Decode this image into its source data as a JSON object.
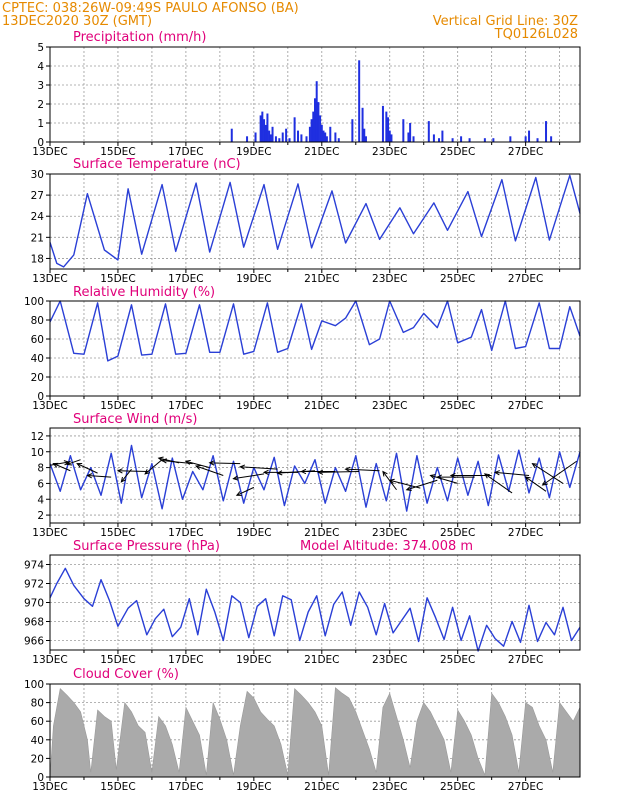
{
  "header": {
    "line1": "CPTEC:   038:26W-09:49S   PAULO AFONSO (BA)",
    "line2": "13DEC2020 30Z (GMT)",
    "right1": "Vertical Grid Line: 30Z",
    "right2": "TQ0126L028"
  },
  "colors": {
    "header": "#e68a00",
    "title": "#e0007a",
    "line": "#2a3fd6",
    "cloud": "#aaaaaa",
    "bar": "#1f2fe0"
  },
  "chart_data": [
    {
      "type": "bar",
      "title": "Precipitation (mm/h)",
      "ylim": [
        0,
        5
      ],
      "yticks": [
        "0",
        "1",
        "2",
        "3",
        "4",
        "5"
      ],
      "xticks": [
        "13DEC",
        "15DEC",
        "17DEC",
        "19DEC",
        "21DEC",
        "23DEC",
        "25DEC",
        "27DEC"
      ],
      "x": [
        5.35,
        5.8,
        6.05,
        6.2,
        6.25,
        6.3,
        6.35,
        6.4,
        6.45,
        6.5,
        6.55,
        6.65,
        6.75,
        6.85,
        6.95,
        7.05,
        7.2,
        7.3,
        7.4,
        7.55,
        7.65,
        7.7,
        7.75,
        7.8,
        7.85,
        7.9,
        7.95,
        8.0,
        8.05,
        8.1,
        8.15,
        8.25,
        8.4,
        8.5,
        8.9,
        9.1,
        9.2,
        9.25,
        9.3,
        9.8,
        9.9,
        9.95,
        10.0,
        10.05,
        10.4,
        10.55,
        10.6,
        10.7,
        11.15,
        11.3,
        11.45,
        11.55,
        11.85,
        12.1,
        12.35,
        12.8,
        13.05,
        13.55,
        14.0,
        14.1,
        14.35,
        14.6,
        14.75
      ],
      "values": [
        0.7,
        0.3,
        0.5,
        1.4,
        1.6,
        1.2,
        0.9,
        1.5,
        0.6,
        0.4,
        0.8,
        0.3,
        0.2,
        0.5,
        0.7,
        0.2,
        1.3,
        0.6,
        0.4,
        0.3,
        0.8,
        1.2,
        1.6,
        2.3,
        3.2,
        2.1,
        1.4,
        0.9,
        0.6,
        0.5,
        0.3,
        0.8,
        0.5,
        0.2,
        1.2,
        4.3,
        1.8,
        0.7,
        0.3,
        1.9,
        1.6,
        1.3,
        0.6,
        0.4,
        1.2,
        0.5,
        1.0,
        0.3,
        1.1,
        0.4,
        0.2,
        0.6,
        0.2,
        0.3,
        0.2,
        0.2,
        0.2,
        0.3,
        0.3,
        0.6,
        0.2,
        1.1,
        0.3
      ]
    },
    {
      "type": "line",
      "title": "Surface Temperature (nC)",
      "ylim": [
        16.5,
        30
      ],
      "yticks": [
        "18",
        "21",
        "24",
        "27",
        "30"
      ],
      "xticks": [
        "13DEC",
        "15DEC",
        "17DEC",
        "19DEC",
        "21DEC",
        "23DEC",
        "25DEC",
        "27DEC"
      ],
      "x": [
        0,
        0.2,
        0.4,
        0.7,
        1.1,
        1.6,
        2.0,
        2.3,
        2.7,
        3.3,
        3.7,
        4.3,
        4.7,
        5.3,
        5.7,
        6.3,
        6.7,
        7.3,
        7.7,
        8.3,
        8.7,
        9.3,
        9.7,
        10.3,
        10.7,
        11.3,
        11.7,
        12.3,
        12.7,
        13.3,
        13.7,
        14.3,
        14.7,
        15.3,
        15.6
      ],
      "values": [
        20.3,
        17.3,
        16.8,
        18.5,
        27.2,
        19.2,
        17.8,
        27.9,
        18.6,
        28.5,
        19.0,
        28.7,
        18.9,
        28.8,
        19.6,
        28.5,
        19.3,
        28.6,
        19.5,
        27.6,
        20.2,
        25.8,
        20.7,
        25.2,
        21.5,
        25.9,
        22.0,
        27.5,
        21.1,
        29.2,
        20.5,
        29.5,
        20.6,
        29.8,
        24.4
      ]
    },
    {
      "type": "line",
      "title": "Relative Humidity (%)",
      "ylim": [
        0,
        100
      ],
      "yticks": [
        "0",
        "20",
        "40",
        "60",
        "80",
        "100"
      ],
      "xticks": [
        "13DEC",
        "15DEC",
        "17DEC",
        "19DEC",
        "21DEC",
        "23DEC",
        "25DEC",
        "27DEC"
      ],
      "x": [
        0,
        0.3,
        0.7,
        1.0,
        1.4,
        1.7,
        2.0,
        2.4,
        2.7,
        3.0,
        3.4,
        3.7,
        4.0,
        4.4,
        4.7,
        5.0,
        5.4,
        5.7,
        6.0,
        6.4,
        6.7,
        7.0,
        7.4,
        7.7,
        8.0,
        8.4,
        8.7,
        9.0,
        9.4,
        9.7,
        10.0,
        10.4,
        10.7,
        11.0,
        11.4,
        11.7,
        12.0,
        12.4,
        12.7,
        13.0,
        13.4,
        13.7,
        14.0,
        14.4,
        14.7,
        15.0,
        15.3,
        15.6
      ],
      "values": [
        78,
        100,
        45,
        44,
        98,
        37,
        42,
        96,
        43,
        44,
        97,
        44,
        45,
        96,
        46,
        46,
        97,
        44,
        47,
        98,
        46,
        50,
        97,
        49,
        79,
        74,
        82,
        100,
        54,
        60,
        100,
        67,
        72,
        87,
        72,
        100,
        56,
        62,
        91,
        48,
        100,
        50,
        52,
        98,
        50,
        50,
        94,
        63
      ]
    },
    {
      "type": "line",
      "title": "Surface Wind (m/s)",
      "ylim": [
        1,
        13
      ],
      "yticks": [
        "2",
        "4",
        "6",
        "8",
        "10",
        "12"
      ],
      "xticks": [
        "13DEC",
        "15DEC",
        "17DEC",
        "19DEC",
        "21DEC",
        "23DEC",
        "25DEC",
        "27DEC"
      ],
      "x": [
        0,
        0.3,
        0.6,
        0.9,
        1.2,
        1.5,
        1.8,
        2.1,
        2.4,
        2.7,
        3.0,
        3.3,
        3.6,
        3.9,
        4.2,
        4.5,
        4.8,
        5.1,
        5.4,
        5.7,
        6.0,
        6.3,
        6.6,
        6.9,
        7.2,
        7.5,
        7.8,
        8.1,
        8.4,
        8.7,
        9.0,
        9.3,
        9.6,
        9.9,
        10.2,
        10.5,
        10.8,
        11.1,
        11.4,
        11.7,
        12.0,
        12.3,
        12.6,
        12.9,
        13.2,
        13.5,
        13.8,
        14.1,
        14.4,
        14.7,
        15.0,
        15.3,
        15.6
      ],
      "values": [
        8.5,
        5.0,
        9.5,
        5.2,
        8.0,
        4.5,
        9.8,
        3.5,
        10.8,
        4.2,
        8.5,
        2.8,
        9.2,
        4.0,
        7.5,
        5.2,
        9.5,
        3.8,
        8.8,
        3.5,
        8.0,
        5.2,
        9.3,
        3.2,
        8.2,
        6.0,
        9.0,
        3.5,
        8.0,
        5.0,
        9.5,
        3.0,
        8.5,
        3.8,
        9.8,
        2.5,
        9.5,
        3.5,
        8.0,
        3.8,
        9.2,
        4.5,
        8.8,
        3.2,
        9.6,
        5.0,
        10.2,
        4.8,
        9.2,
        4.2,
        10.0,
        5.5,
        10.0
      ],
      "arrows": [
        {
          "x": 0.0,
          "y": 8.3,
          "dx": 0.55,
          "dy": 0.4
        },
        {
          "x": 0.6,
          "y": 7.6,
          "dx": -0.5,
          "dy": 0.9
        },
        {
          "x": 0.9,
          "y": 9.0,
          "dx": -0.4,
          "dy": -0.6
        },
        {
          "x": 1.4,
          "y": 7.3,
          "dx": -0.6,
          "dy": 1.2
        },
        {
          "x": 1.8,
          "y": 6.8,
          "dx": -0.7,
          "dy": 0.2
        },
        {
          "x": 2.4,
          "y": 7.8,
          "dx": -0.3,
          "dy": -1.6
        },
        {
          "x": 2.9,
          "y": 7.5,
          "dx": -0.9,
          "dy": 0.1
        },
        {
          "x": 3.3,
          "y": 9.0,
          "dx": -0.5,
          "dy": -1.8
        },
        {
          "x": 3.8,
          "y": 8.6,
          "dx": -0.6,
          "dy": 0.6
        },
        {
          "x": 4.2,
          "y": 8.5,
          "dx": -0.9,
          "dy": 0.4
        },
        {
          "x": 4.7,
          "y": 8.0,
          "dx": -0.7,
          "dy": 0.8
        },
        {
          "x": 5.1,
          "y": 7.0,
          "dx": -0.8,
          "dy": 1.2
        },
        {
          "x": 5.6,
          "y": 8.5,
          "dx": -0.9,
          "dy": 0.1
        },
        {
          "x": 6.0,
          "y": 5.5,
          "dx": -0.5,
          "dy": -1.0
        },
        {
          "x": 6.3,
          "y": 7.2,
          "dx": -0.9,
          "dy": -0.6
        },
        {
          "x": 6.7,
          "y": 7.8,
          "dx": -1.1,
          "dy": 0.3
        },
        {
          "x": 7.3,
          "y": 7.4,
          "dx": -1.0,
          "dy": 0.0
        },
        {
          "x": 7.8,
          "y": 7.6,
          "dx": -1.1,
          "dy": -0.3
        },
        {
          "x": 8.4,
          "y": 7.5,
          "dx": -1.0,
          "dy": 0.0
        },
        {
          "x": 9.1,
          "y": 7.5,
          "dx": -1.2,
          "dy": -0.1
        },
        {
          "x": 9.7,
          "y": 7.6,
          "dx": -1.0,
          "dy": 0.2
        },
        {
          "x": 10.2,
          "y": 5.2,
          "dx": -0.4,
          "dy": 2.3
        },
        {
          "x": 10.9,
          "y": 5.4,
          "dx": -0.9,
          "dy": 1.0
        },
        {
          "x": 11.4,
          "y": 6.4,
          "dx": -0.9,
          "dy": -1.2
        },
        {
          "x": 12.0,
          "y": 6.0,
          "dx": -0.8,
          "dy": 1.0
        },
        {
          "x": 12.5,
          "y": 6.8,
          "dx": -1.1,
          "dy": 0.0
        },
        {
          "x": 13.0,
          "y": 7.0,
          "dx": -1.2,
          "dy": 0.0
        },
        {
          "x": 13.6,
          "y": 4.8,
          "dx": -0.8,
          "dy": 2.4
        },
        {
          "x": 14.1,
          "y": 7.0,
          "dx": -1.0,
          "dy": 0.4
        },
        {
          "x": 14.6,
          "y": 5.0,
          "dx": -0.6,
          "dy": 1.8
        },
        {
          "x": 15.1,
          "y": 6.0,
          "dx": -0.9,
          "dy": 2.5
        },
        {
          "x": 15.5,
          "y": 8.8,
          "dx": -1.0,
          "dy": -3.0
        }
      ]
    },
    {
      "type": "line",
      "title": "Surface Pressure (hPa)",
      "annotation": "Model Altitude: 374.008  m",
      "ylim": [
        965,
        975
      ],
      "yticks": [
        "966",
        "968",
        "970",
        "972",
        "974"
      ],
      "xticks": [
        "13DEC",
        "15DEC",
        "17DEC",
        "19DEC",
        "21DEC",
        "23DEC",
        "25DEC",
        "27DEC"
      ],
      "x": [
        0,
        0.2,
        0.45,
        0.7,
        1.0,
        1.25,
        1.5,
        1.75,
        2.0,
        2.3,
        2.55,
        2.85,
        3.1,
        3.35,
        3.6,
        3.85,
        4.1,
        4.35,
        4.6,
        4.85,
        5.1,
        5.35,
        5.6,
        5.85,
        6.1,
        6.35,
        6.6,
        6.85,
        7.1,
        7.35,
        7.6,
        7.85,
        8.1,
        8.35,
        8.6,
        8.85,
        9.1,
        9.35,
        9.6,
        9.85,
        10.1,
        10.35,
        10.6,
        10.85,
        11.1,
        11.35,
        11.6,
        11.85,
        12.1,
        12.35,
        12.6,
        12.85,
        13.1,
        13.35,
        13.6,
        13.85,
        14.1,
        14.35,
        14.6,
        14.85,
        15.1,
        15.35,
        15.6
      ],
      "values": [
        970.5,
        972.0,
        973.6,
        971.8,
        970.4,
        969.6,
        972.4,
        970.2,
        967.5,
        969.4,
        970.2,
        966.6,
        968.3,
        969.3,
        966.4,
        967.4,
        970.4,
        966.6,
        971.4,
        969.0,
        966.0,
        970.7,
        970.0,
        966.3,
        969.6,
        970.4,
        966.5,
        970.7,
        970.3,
        966.0,
        969.0,
        970.7,
        966.5,
        969.8,
        971.1,
        967.6,
        971.1,
        969.5,
        966.6,
        969.9,
        966.8,
        968.1,
        969.4,
        965.9,
        970.5,
        968.4,
        966.1,
        969.5,
        966.0,
        968.6,
        964.9,
        967.6,
        966.2,
        965.4,
        968.0,
        965.8,
        969.7,
        965.9,
        967.9,
        966.6,
        969.5,
        966.0,
        967.4
      ]
    },
    {
      "type": "area",
      "title": "Cloud Cover (%)",
      "ylim": [
        0,
        100
      ],
      "yticks": [
        "0",
        "20",
        "40",
        "60",
        "80",
        "100"
      ],
      "xticks": [
        "13DEC",
        "15DEC",
        "17DEC",
        "19DEC",
        "21DEC",
        "23DEC",
        "25DEC",
        "27DEC"
      ],
      "x": [
        0,
        0.1,
        0.3,
        0.5,
        0.7,
        0.9,
        1.1,
        1.2,
        1.4,
        1.6,
        1.8,
        1.95,
        2.2,
        2.4,
        2.6,
        2.8,
        3.0,
        3.2,
        3.4,
        3.6,
        3.8,
        4.0,
        4.2,
        4.4,
        4.6,
        4.8,
        5.0,
        5.2,
        5.4,
        5.6,
        5.8,
        6.0,
        6.2,
        6.4,
        6.6,
        6.8,
        7.0,
        7.2,
        7.4,
        7.6,
        7.8,
        8.0,
        8.2,
        8.4,
        8.6,
        8.8,
        9.0,
        9.2,
        9.4,
        9.6,
        9.8,
        10.0,
        10.2,
        10.4,
        10.6,
        10.8,
        11.0,
        11.2,
        11.4,
        11.6,
        11.8,
        12.0,
        12.2,
        12.4,
        12.6,
        12.8,
        13.0,
        13.2,
        13.4,
        13.6,
        13.8,
        14.0,
        14.2,
        14.4,
        14.6,
        14.8,
        15.0,
        15.2,
        15.4,
        15.6
      ],
      "values": [
        0,
        55,
        95,
        88,
        80,
        70,
        40,
        5,
        72,
        65,
        60,
        8,
        80,
        70,
        55,
        48,
        5,
        65,
        55,
        35,
        5,
        75,
        60,
        45,
        2,
        80,
        62,
        40,
        2,
        55,
        92,
        85,
        70,
        62,
        55,
        35,
        2,
        95,
        88,
        80,
        70,
        55,
        2,
        96,
        90,
        85,
        70,
        50,
        30,
        5,
        75,
        90,
        65,
        40,
        10,
        60,
        80,
        70,
        55,
        40,
        5,
        72,
        60,
        45,
        20,
        2,
        90,
        80,
        65,
        45,
        5,
        80,
        75,
        55,
        40,
        5,
        80,
        70,
        60,
        75
      ]
    }
  ]
}
